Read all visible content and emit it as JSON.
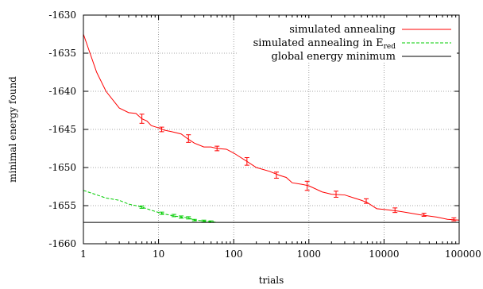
{
  "chart_data": {
    "type": "line",
    "xlabel": "trials",
    "ylabel": "minimal energy found",
    "xscale": "log",
    "xlim": [
      1,
      100000
    ],
    "ylim": [
      -1660,
      -1630
    ],
    "xticks": [
      1,
      10,
      100,
      1000,
      10000,
      100000
    ],
    "xtick_labels": [
      "1",
      "10",
      "100",
      "1000",
      "10000",
      "100000"
    ],
    "yticks": [
      -1660,
      -1655,
      -1650,
      -1645,
      -1640,
      -1635,
      -1630
    ],
    "ytick_labels": [
      "-1660",
      "-1655",
      "-1650",
      "-1645",
      "-1640",
      "-1635",
      "-1630"
    ],
    "grid": true,
    "grid_style": "dotted",
    "legend_position": "top-right",
    "series": [
      {
        "name": "simulated annealing",
        "color": "#ff0000",
        "style": "solid",
        "x": [
          1,
          1.5,
          2,
          3,
          4,
          5,
          6,
          7,
          8,
          10,
          12,
          15,
          20,
          25,
          30,
          40,
          50,
          60,
          80,
          100,
          150,
          200,
          300,
          400,
          500,
          600,
          800,
          1000,
          1500,
          2000,
          3000,
          4000,
          5000,
          6000,
          8000,
          10000,
          15000,
          20000,
          30000,
          50000,
          70000,
          100000
        ],
        "y": [
          -1632.5,
          -1637.5,
          -1640.0,
          -1642.2,
          -1642.8,
          -1642.9,
          -1643.6,
          -1643.9,
          -1644.5,
          -1644.8,
          -1645.1,
          -1645.3,
          -1645.6,
          -1646.3,
          -1646.8,
          -1647.3,
          -1647.3,
          -1647.5,
          -1647.6,
          -1648.1,
          -1649.2,
          -1650.0,
          -1650.5,
          -1651.0,
          -1651.3,
          -1652.0,
          -1652.2,
          -1652.4,
          -1653.2,
          -1653.5,
          -1653.6,
          -1654.0,
          -1654.3,
          -1654.6,
          -1655.4,
          -1655.5,
          -1655.7,
          -1655.9,
          -1656.2,
          -1656.5,
          -1656.8,
          -1656.9
        ],
        "error_bars": [
          {
            "x": 6,
            "y": -1643.6,
            "err": 0.6
          },
          {
            "x": 11,
            "y": -1645.0,
            "err": 0.3
          },
          {
            "x": 25,
            "y": -1646.2,
            "err": 0.5
          },
          {
            "x": 60,
            "y": -1647.5,
            "err": 0.3
          },
          {
            "x": 150,
            "y": -1649.2,
            "err": 0.5
          },
          {
            "x": 370,
            "y": -1651.0,
            "err": 0.4
          },
          {
            "x": 950,
            "y": -1652.4,
            "err": 0.6
          },
          {
            "x": 2300,
            "y": -1653.5,
            "err": 0.4
          },
          {
            "x": 5800,
            "y": -1654.4,
            "err": 0.3
          },
          {
            "x": 14000,
            "y": -1655.6,
            "err": 0.3
          },
          {
            "x": 34000,
            "y": -1656.2,
            "err": 0.2
          },
          {
            "x": 85000,
            "y": -1656.8,
            "err": 0.2
          }
        ]
      },
      {
        "name": "simulated annealing in E_red",
        "color": "#00cc00",
        "style": "dashed",
        "x": [
          1,
          2,
          3,
          4,
          5,
          6,
          8,
          10,
          12,
          15,
          20,
          25,
          30,
          40,
          50,
          60
        ],
        "y": [
          -1653.0,
          -1654.0,
          -1654.3,
          -1654.8,
          -1655.0,
          -1655.2,
          -1655.6,
          -1655.9,
          -1656.1,
          -1656.3,
          -1656.5,
          -1656.6,
          -1656.9,
          -1657.0,
          -1657.1,
          -1657.2
        ],
        "error_bars": [
          {
            "x": 6,
            "y": -1655.2,
            "err": 0.15
          },
          {
            "x": 11,
            "y": -1656.0,
            "err": 0.15
          },
          {
            "x": 16,
            "y": -1656.3,
            "err": 0.15
          },
          {
            "x": 20,
            "y": -1656.5,
            "err": 0.15
          },
          {
            "x": 25,
            "y": -1656.6,
            "err": 0.15
          },
          {
            "x": 30,
            "y": -1656.9,
            "err": 0.1
          },
          {
            "x": 40,
            "y": -1657.0,
            "err": 0.1
          },
          {
            "x": 50,
            "y": -1657.1,
            "err": 0.1
          }
        ]
      },
      {
        "name": "global energy minimum",
        "color": "#000000",
        "style": "solid",
        "x": [
          1,
          100000
        ],
        "y": [
          -1657.2,
          -1657.2
        ]
      }
    ],
    "legend": [
      {
        "label": "simulated annealing",
        "subscript": ""
      },
      {
        "label": "simulated annealing in E",
        "subscript": "red"
      },
      {
        "label": "global energy minimum",
        "subscript": ""
      }
    ]
  }
}
